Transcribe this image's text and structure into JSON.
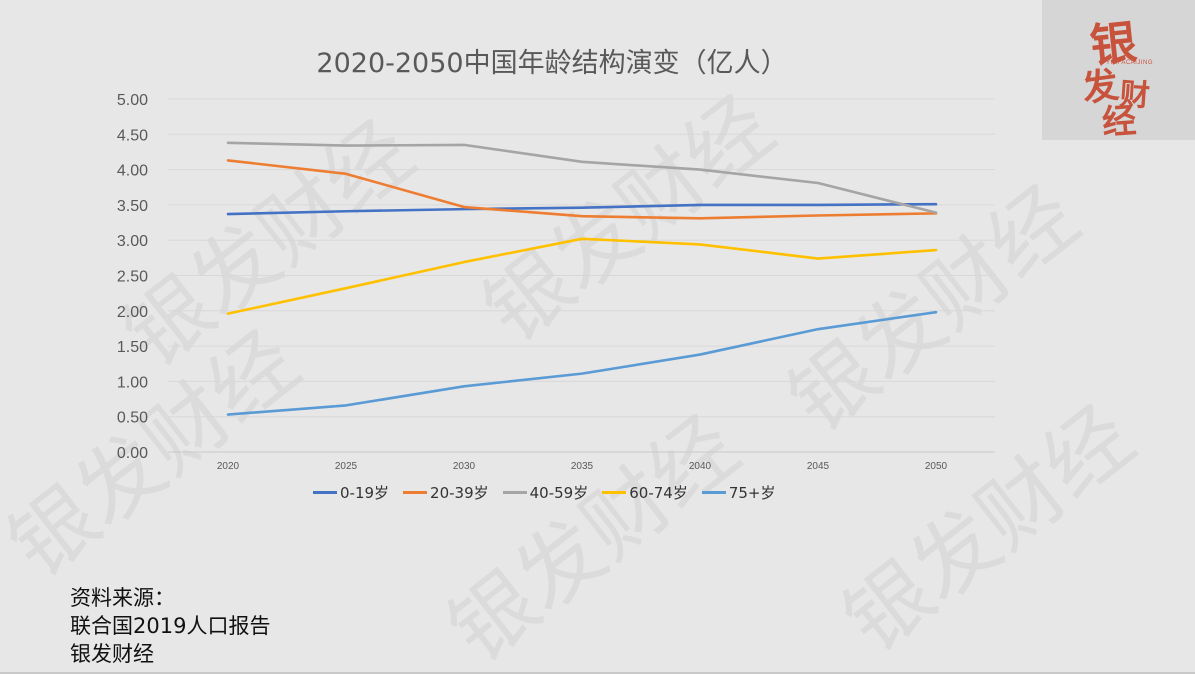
{
  "chart_data": {
    "type": "line",
    "title": "2020-2050中国年龄结构演变（亿人）",
    "x": [
      "2020",
      "2025",
      "2030",
      "2035",
      "2040",
      "2045",
      "2050"
    ],
    "ylim": [
      0,
      5
    ],
    "y_ticks": [
      "0.00",
      "0.50",
      "1.00",
      "1.50",
      "2.00",
      "2.50",
      "3.00",
      "3.50",
      "4.00",
      "4.50",
      "5.00"
    ],
    "grid": true,
    "legend_position": "bottom",
    "series": [
      {
        "name": "0-19岁",
        "color": "#4472c4",
        "values": [
          3.37,
          3.41,
          3.44,
          3.46,
          3.5,
          3.5,
          3.51
        ]
      },
      {
        "name": "20-39岁",
        "color": "#ed7d31",
        "values": [
          4.13,
          3.94,
          3.47,
          3.34,
          3.31,
          3.35,
          3.38
        ]
      },
      {
        "name": "40-59岁",
        "color": "#a5a5a5",
        "values": [
          4.38,
          4.34,
          4.35,
          4.11,
          4.0,
          3.81,
          3.39
        ]
      },
      {
        "name": "60-74岁",
        "color": "#ffc000",
        "values": [
          1.96,
          2.32,
          2.69,
          3.02,
          2.94,
          2.74,
          2.86
        ]
      },
      {
        "name": "75+岁",
        "color": "#5b9bd5",
        "values": [
          0.53,
          0.66,
          0.93,
          1.11,
          1.38,
          1.74,
          1.98
        ]
      }
    ]
  },
  "source": {
    "heading": "资料来源：",
    "line1": "联合国2019人口报告",
    "line2": "银发财经"
  },
  "watermark": {
    "text": "银发财经"
  },
  "logo": {
    "chars": [
      "银",
      "发",
      "财",
      "经"
    ],
    "subtitle": "YINFACAIJING",
    "color": "#c8533d"
  }
}
